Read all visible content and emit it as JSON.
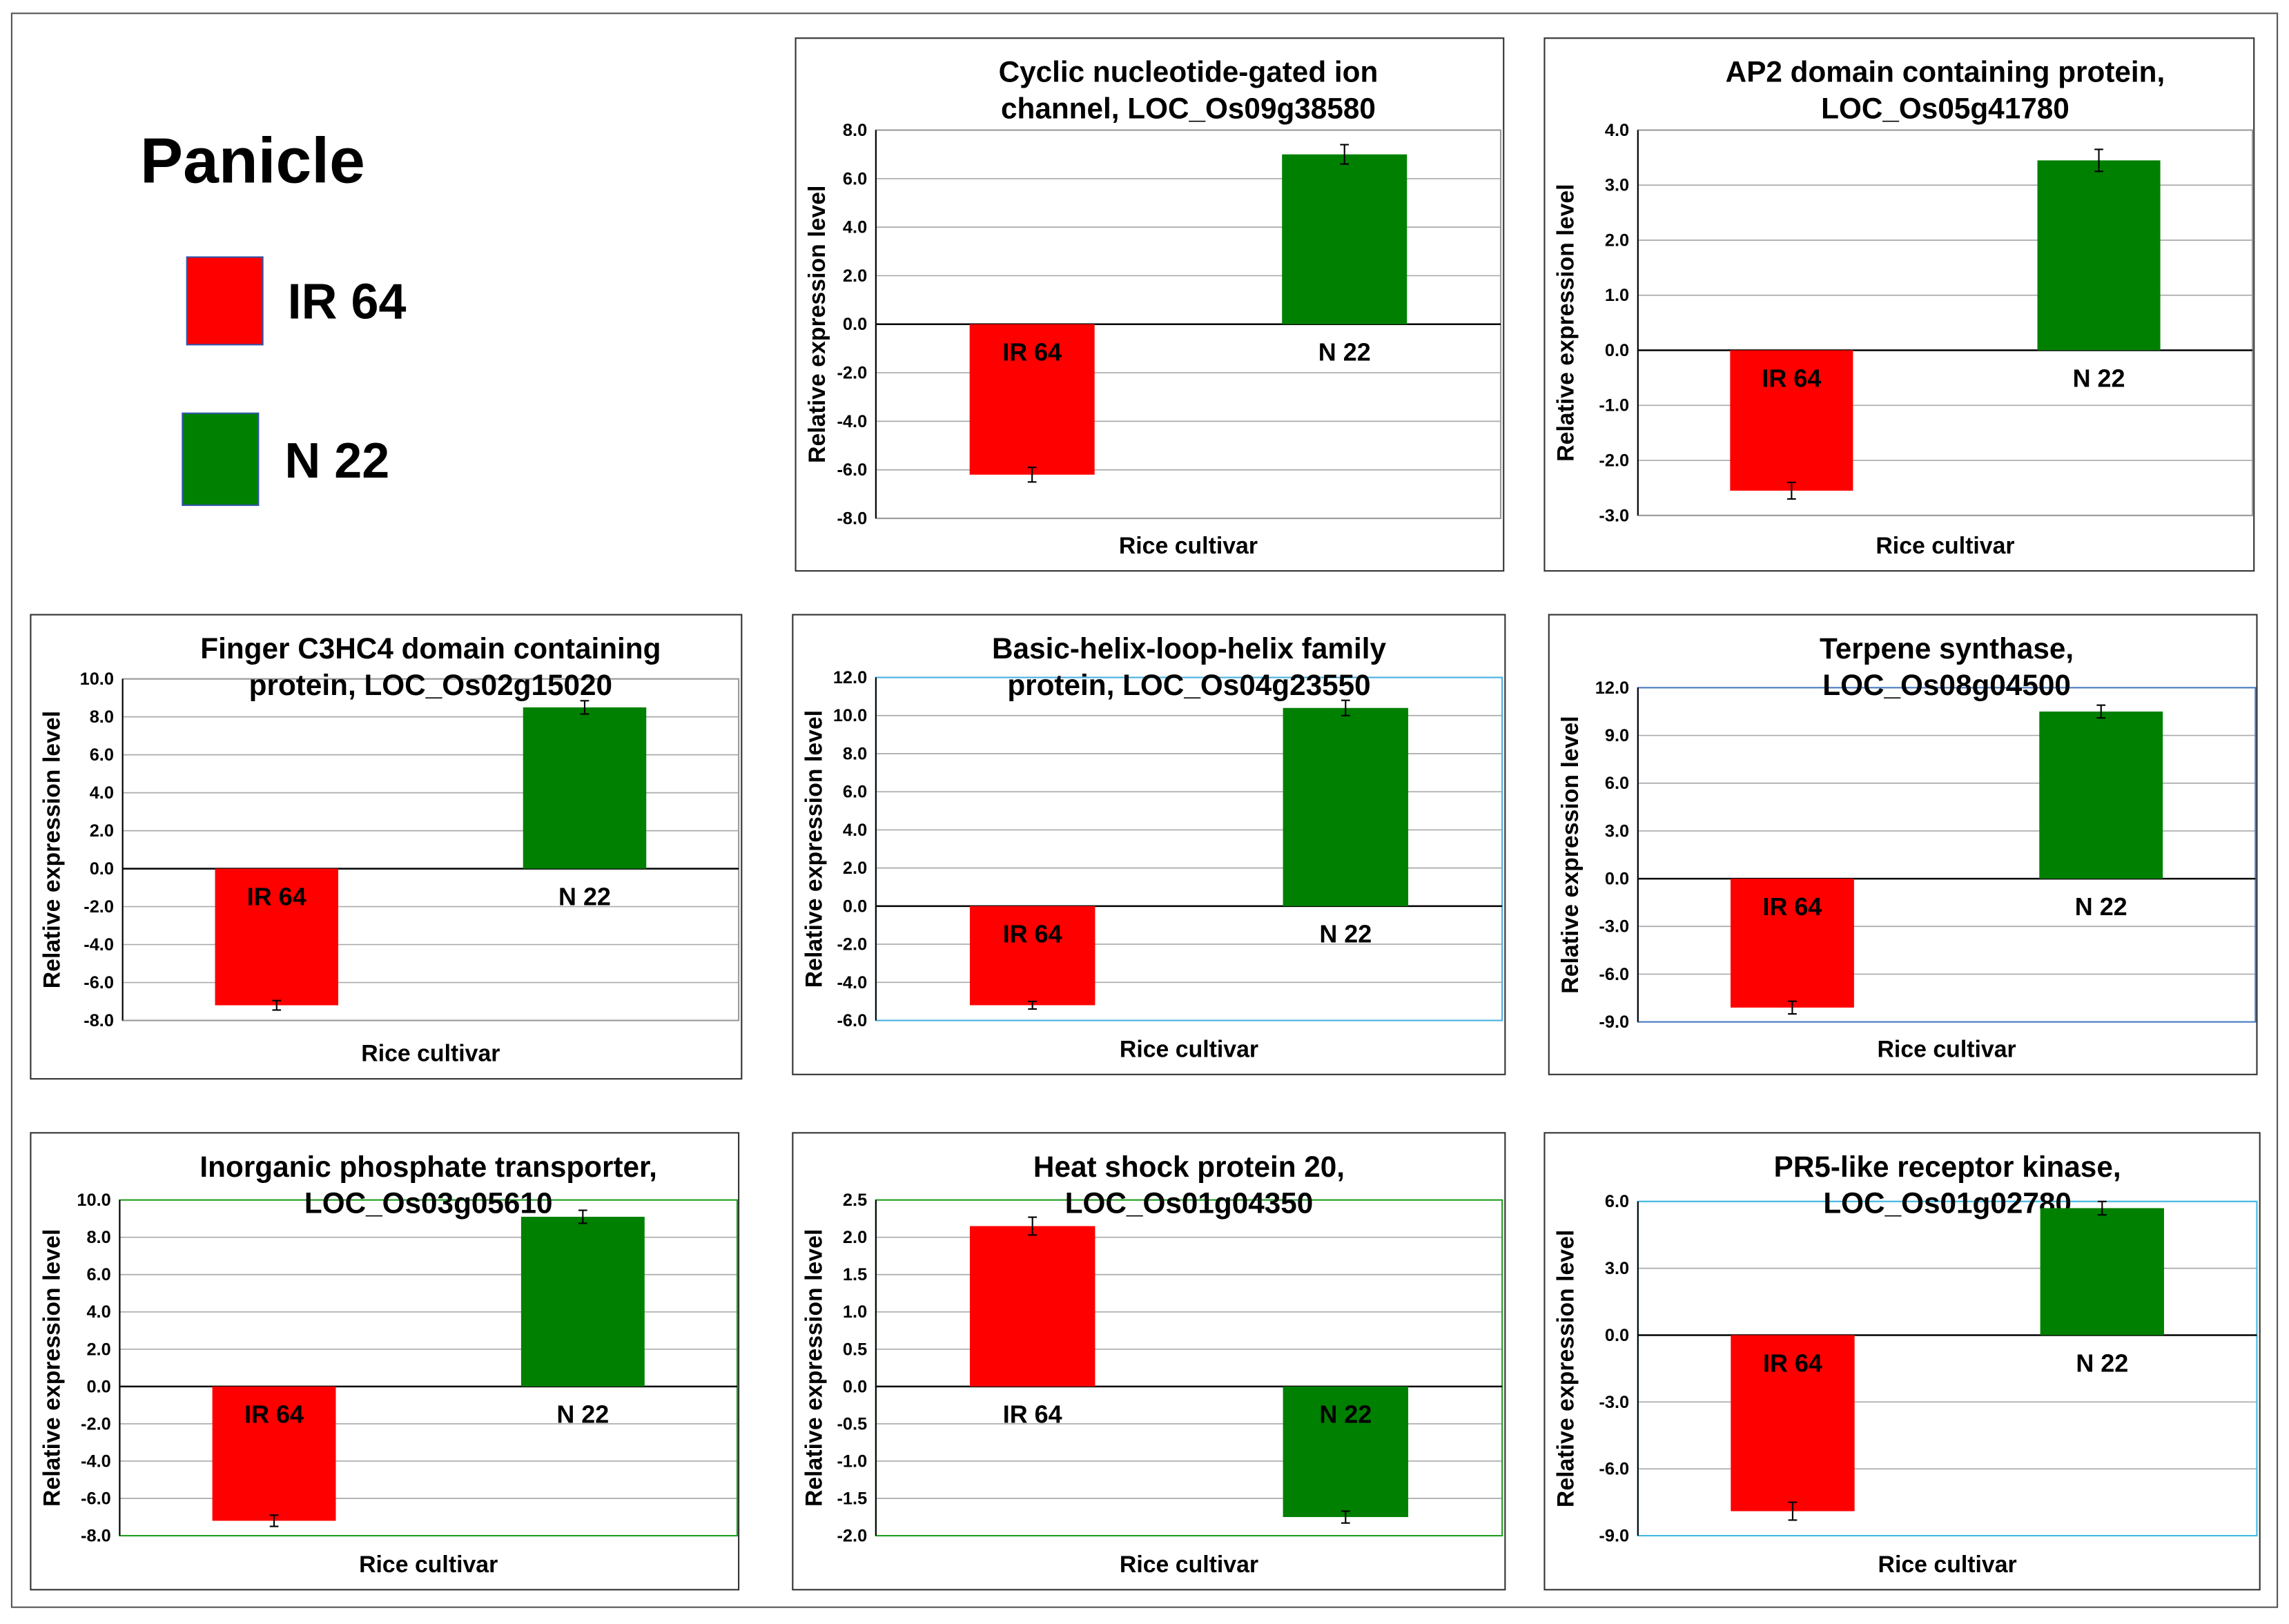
{
  "figure": {
    "title": "Panicle",
    "legend": [
      {
        "name": "IR 64",
        "color": "#ff0000"
      },
      {
        "name": "N 22",
        "color": "#008000"
      }
    ]
  },
  "chart_data": [
    {
      "type": "bar",
      "title": [
        "Cyclic nucleotide-gated ion",
        "channel, LOC_Os09g38580"
      ],
      "y_label": "Relative expression level",
      "x_label": "Rice cultivar",
      "categories": [
        "IR 64",
        "N 22"
      ],
      "values": [
        -6.2,
        7.0
      ],
      "errors": [
        0.3,
        0.4
      ],
      "colors": [
        "#ff0000",
        "#008000"
      ],
      "ylim": [
        -8,
        8
      ],
      "yticks": [
        {
          "value": -8,
          "label": "-8.0"
        },
        {
          "value": -6,
          "label": "-6.0"
        },
        {
          "value": -4,
          "label": "-4.0"
        },
        {
          "value": -2,
          "label": "-2.0"
        },
        {
          "value": 0,
          "label": "0.0"
        },
        {
          "value": 2,
          "label": "2.0"
        },
        {
          "value": 4,
          "label": "4.0"
        },
        {
          "value": 6,
          "label": "6.0"
        },
        {
          "value": 8,
          "label": "8.0"
        }
      ],
      "grid": true
    },
    {
      "type": "bar",
      "title": [
        "AP2 domain containing protein,",
        "LOC_Os05g41780"
      ],
      "y_label": "Relative expression level",
      "x_label": "Rice cultivar",
      "categories": [
        "IR 64",
        "N 22"
      ],
      "values": [
        -2.55,
        3.45
      ],
      "errors": [
        0.15,
        0.2
      ],
      "colors": [
        "#ff0000",
        "#008000"
      ],
      "ylim": [
        -3,
        4
      ],
      "yticks": [
        {
          "value": -3,
          "label": "-3.0"
        },
        {
          "value": -2,
          "label": "-2.0"
        },
        {
          "value": -1,
          "label": "-1.0"
        },
        {
          "value": 0,
          "label": "0.0"
        },
        {
          "value": 1,
          "label": "1.0"
        },
        {
          "value": 2,
          "label": "2.0"
        },
        {
          "value": 3,
          "label": "3.0"
        },
        {
          "value": 4,
          "label": "4.0"
        }
      ],
      "grid": true
    },
    {
      "type": "bar",
      "title": [
        "Finger C3HC4 domain containing",
        "protein, LOC_Os02g15020"
      ],
      "y_label": "Relative expression level",
      "x_label": "Rice cultivar",
      "categories": [
        "IR 64",
        "N 22"
      ],
      "values": [
        -7.2,
        8.5
      ],
      "errors": [
        0.25,
        0.35
      ],
      "colors": [
        "#ff0000",
        "#008000"
      ],
      "ylim": [
        -8,
        10
      ],
      "yticks": [
        {
          "value": -8,
          "label": "-8.0"
        },
        {
          "value": -6,
          "label": "-6.0"
        },
        {
          "value": -4,
          "label": "-4.0"
        },
        {
          "value": -2,
          "label": "-2.0"
        },
        {
          "value": 0,
          "label": "0.0"
        },
        {
          "value": 2,
          "label": "2.0"
        },
        {
          "value": 4,
          "label": "4.0"
        },
        {
          "value": 6,
          "label": "6.0"
        },
        {
          "value": 8,
          "label": "8.0"
        },
        {
          "value": 10,
          "label": "10.0"
        }
      ],
      "grid": true
    },
    {
      "type": "bar",
      "title": [
        "Basic-helix-loop-helix family",
        "protein, LOC_Os04g23550"
      ],
      "y_label": "Relative expression level",
      "x_label": "Rice cultivar",
      "categories": [
        "IR 64",
        "N 22"
      ],
      "values": [
        -5.2,
        10.4
      ],
      "errors": [
        0.2,
        0.4
      ],
      "colors": [
        "#ff0000",
        "#008000"
      ],
      "ylim": [
        -6,
        12
      ],
      "yticks": [
        {
          "value": -6,
          "label": "-6.0"
        },
        {
          "value": -4,
          "label": "-4.0"
        },
        {
          "value": -2,
          "label": "-2.0"
        },
        {
          "value": 0,
          "label": "0.0"
        },
        {
          "value": 2,
          "label": "2.0"
        },
        {
          "value": 4,
          "label": "4.0"
        },
        {
          "value": 6,
          "label": "6.0"
        },
        {
          "value": 8,
          "label": "8.0"
        },
        {
          "value": 10,
          "label": "10.0"
        },
        {
          "value": 12,
          "label": "12.0"
        }
      ],
      "grid": true
    },
    {
      "type": "bar",
      "title": [
        "Terpene synthase,",
        "LOC_Os08g04500"
      ],
      "y_label": "Relative expression level",
      "x_label": "Rice cultivar",
      "categories": [
        "IR 64",
        "N 22"
      ],
      "values": [
        -8.1,
        10.5
      ],
      "errors": [
        0.4,
        0.4
      ],
      "colors": [
        "#ff0000",
        "#008000"
      ],
      "ylim": [
        -9,
        12
      ],
      "yticks": [
        {
          "value": -9,
          "label": "-9.0"
        },
        {
          "value": -6,
          "label": "-6.0"
        },
        {
          "value": -3,
          "label": "-3.0"
        },
        {
          "value": 0,
          "label": "0.0"
        },
        {
          "value": 3,
          "label": "3.0"
        },
        {
          "value": 6,
          "label": "6.0"
        },
        {
          "value": 9,
          "label": "9.0"
        },
        {
          "value": 12,
          "label": "12.0"
        }
      ],
      "grid": true
    },
    {
      "type": "bar",
      "title": [
        "Inorganic phosphate transporter,",
        "LOC_Os03g05610"
      ],
      "y_label": "Relative expression level",
      "x_label": "Rice cultivar",
      "categories": [
        "IR 64",
        "N 22"
      ],
      "values": [
        -7.2,
        9.1
      ],
      "errors": [
        0.3,
        0.35
      ],
      "colors": [
        "#ff0000",
        "#008000"
      ],
      "ylim": [
        -8,
        10
      ],
      "yticks": [
        {
          "value": -8,
          "label": "-8.0"
        },
        {
          "value": -6,
          "label": "-6.0"
        },
        {
          "value": -4,
          "label": "-4.0"
        },
        {
          "value": -2,
          "label": "-2.0"
        },
        {
          "value": 0,
          "label": "0.0"
        },
        {
          "value": 2,
          "label": "2.0"
        },
        {
          "value": 4,
          "label": "4.0"
        },
        {
          "value": 6,
          "label": "6.0"
        },
        {
          "value": 8,
          "label": "8.0"
        },
        {
          "value": 10,
          "label": "10.0"
        }
      ],
      "grid": true
    },
    {
      "type": "bar",
      "title": [
        "Heat shock protein  20,",
        "LOC_Os01g04350"
      ],
      "y_label": "Relative expression level",
      "x_label": "Rice cultivar",
      "categories": [
        "IR 64",
        "N 22"
      ],
      "values": [
        2.15,
        -1.75
      ],
      "errors": [
        0.12,
        0.08
      ],
      "colors": [
        "#ff0000",
        "#008000"
      ],
      "ylim": [
        -2,
        2.5
      ],
      "yticks": [
        {
          "value": -2,
          "label": "-2.0"
        },
        {
          "value": -1.5,
          "label": "-1.5"
        },
        {
          "value": -1,
          "label": "-1.0"
        },
        {
          "value": -0.5,
          "label": "-0.5"
        },
        {
          "value": 0,
          "label": "0.0"
        },
        {
          "value": 0.5,
          "label": "0.5"
        },
        {
          "value": 1,
          "label": "1.0"
        },
        {
          "value": 1.5,
          "label": "1.5"
        },
        {
          "value": 2,
          "label": "2.0"
        },
        2.5
      ],
      "grid": true
    },
    {
      "type": "bar",
      "title": [
        "PR5-like receptor kinase,",
        "LOC_Os01g02780"
      ],
      "y_label": "Relative expression level",
      "x_label": "Rice cultivar",
      "categories": [
        "IR 64",
        "N 22"
      ],
      "values": [
        -7.9,
        5.7
      ],
      "errors": [
        0.4,
        0.3
      ],
      "colors": [
        "#ff0000",
        "#008000"
      ],
      "ylim": [
        -9,
        6
      ],
      "yticks": [
        {
          "value": -9,
          "label": "-9.0"
        },
        {
          "value": -6,
          "label": "-6.0"
        },
        {
          "value": -3,
          "label": "-3.0"
        },
        {
          "value": 0,
          "label": "0.0"
        },
        {
          "value": 3,
          "label": "3.0"
        },
        {
          "value": 6,
          "label": "6.0"
        }
      ],
      "grid": true
    }
  ]
}
